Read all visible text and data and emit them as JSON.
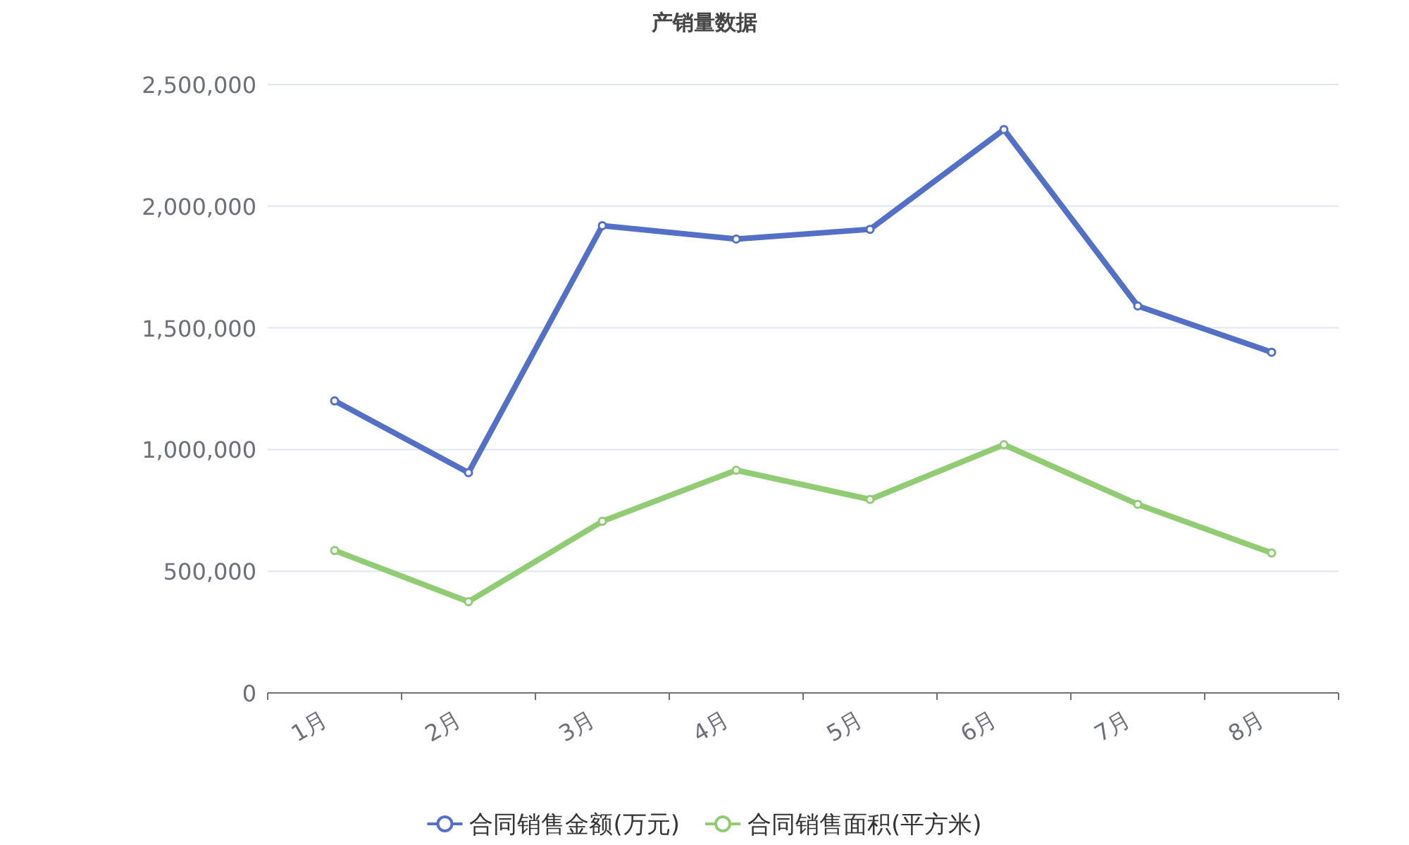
{
  "chart_data": {
    "type": "line",
    "title": "产销量数据",
    "categories": [
      "1月",
      "2月",
      "3月",
      "4月",
      "5月",
      "6月",
      "7月",
      "8月"
    ],
    "series": [
      {
        "name": "合同销售金额(万元)",
        "color": "#5470c6",
        "values": [
          1200000,
          905000,
          1920000,
          1865000,
          1905000,
          2315000,
          1590000,
          1400000
        ]
      },
      {
        "name": "合同销售面积(平方米)",
        "color": "#91cc75",
        "values": [
          585000,
          375000,
          705000,
          915000,
          795000,
          1020000,
          775000,
          575000
        ]
      }
    ],
    "ylim": [
      0,
      2500000
    ],
    "yticks": [
      {
        "value": 0,
        "label": "0"
      },
      {
        "value": 500000,
        "label": "500,000"
      },
      {
        "value": 1000000,
        "label": "1,000,000"
      },
      {
        "value": 1500000,
        "label": "1,500,000"
      },
      {
        "value": 2000000,
        "label": "2,000,000"
      },
      {
        "value": 2500000,
        "label": "2,500,000"
      }
    ],
    "grid": "y",
    "legend": "bottom",
    "marker": "circle",
    "line_style": "solid"
  }
}
